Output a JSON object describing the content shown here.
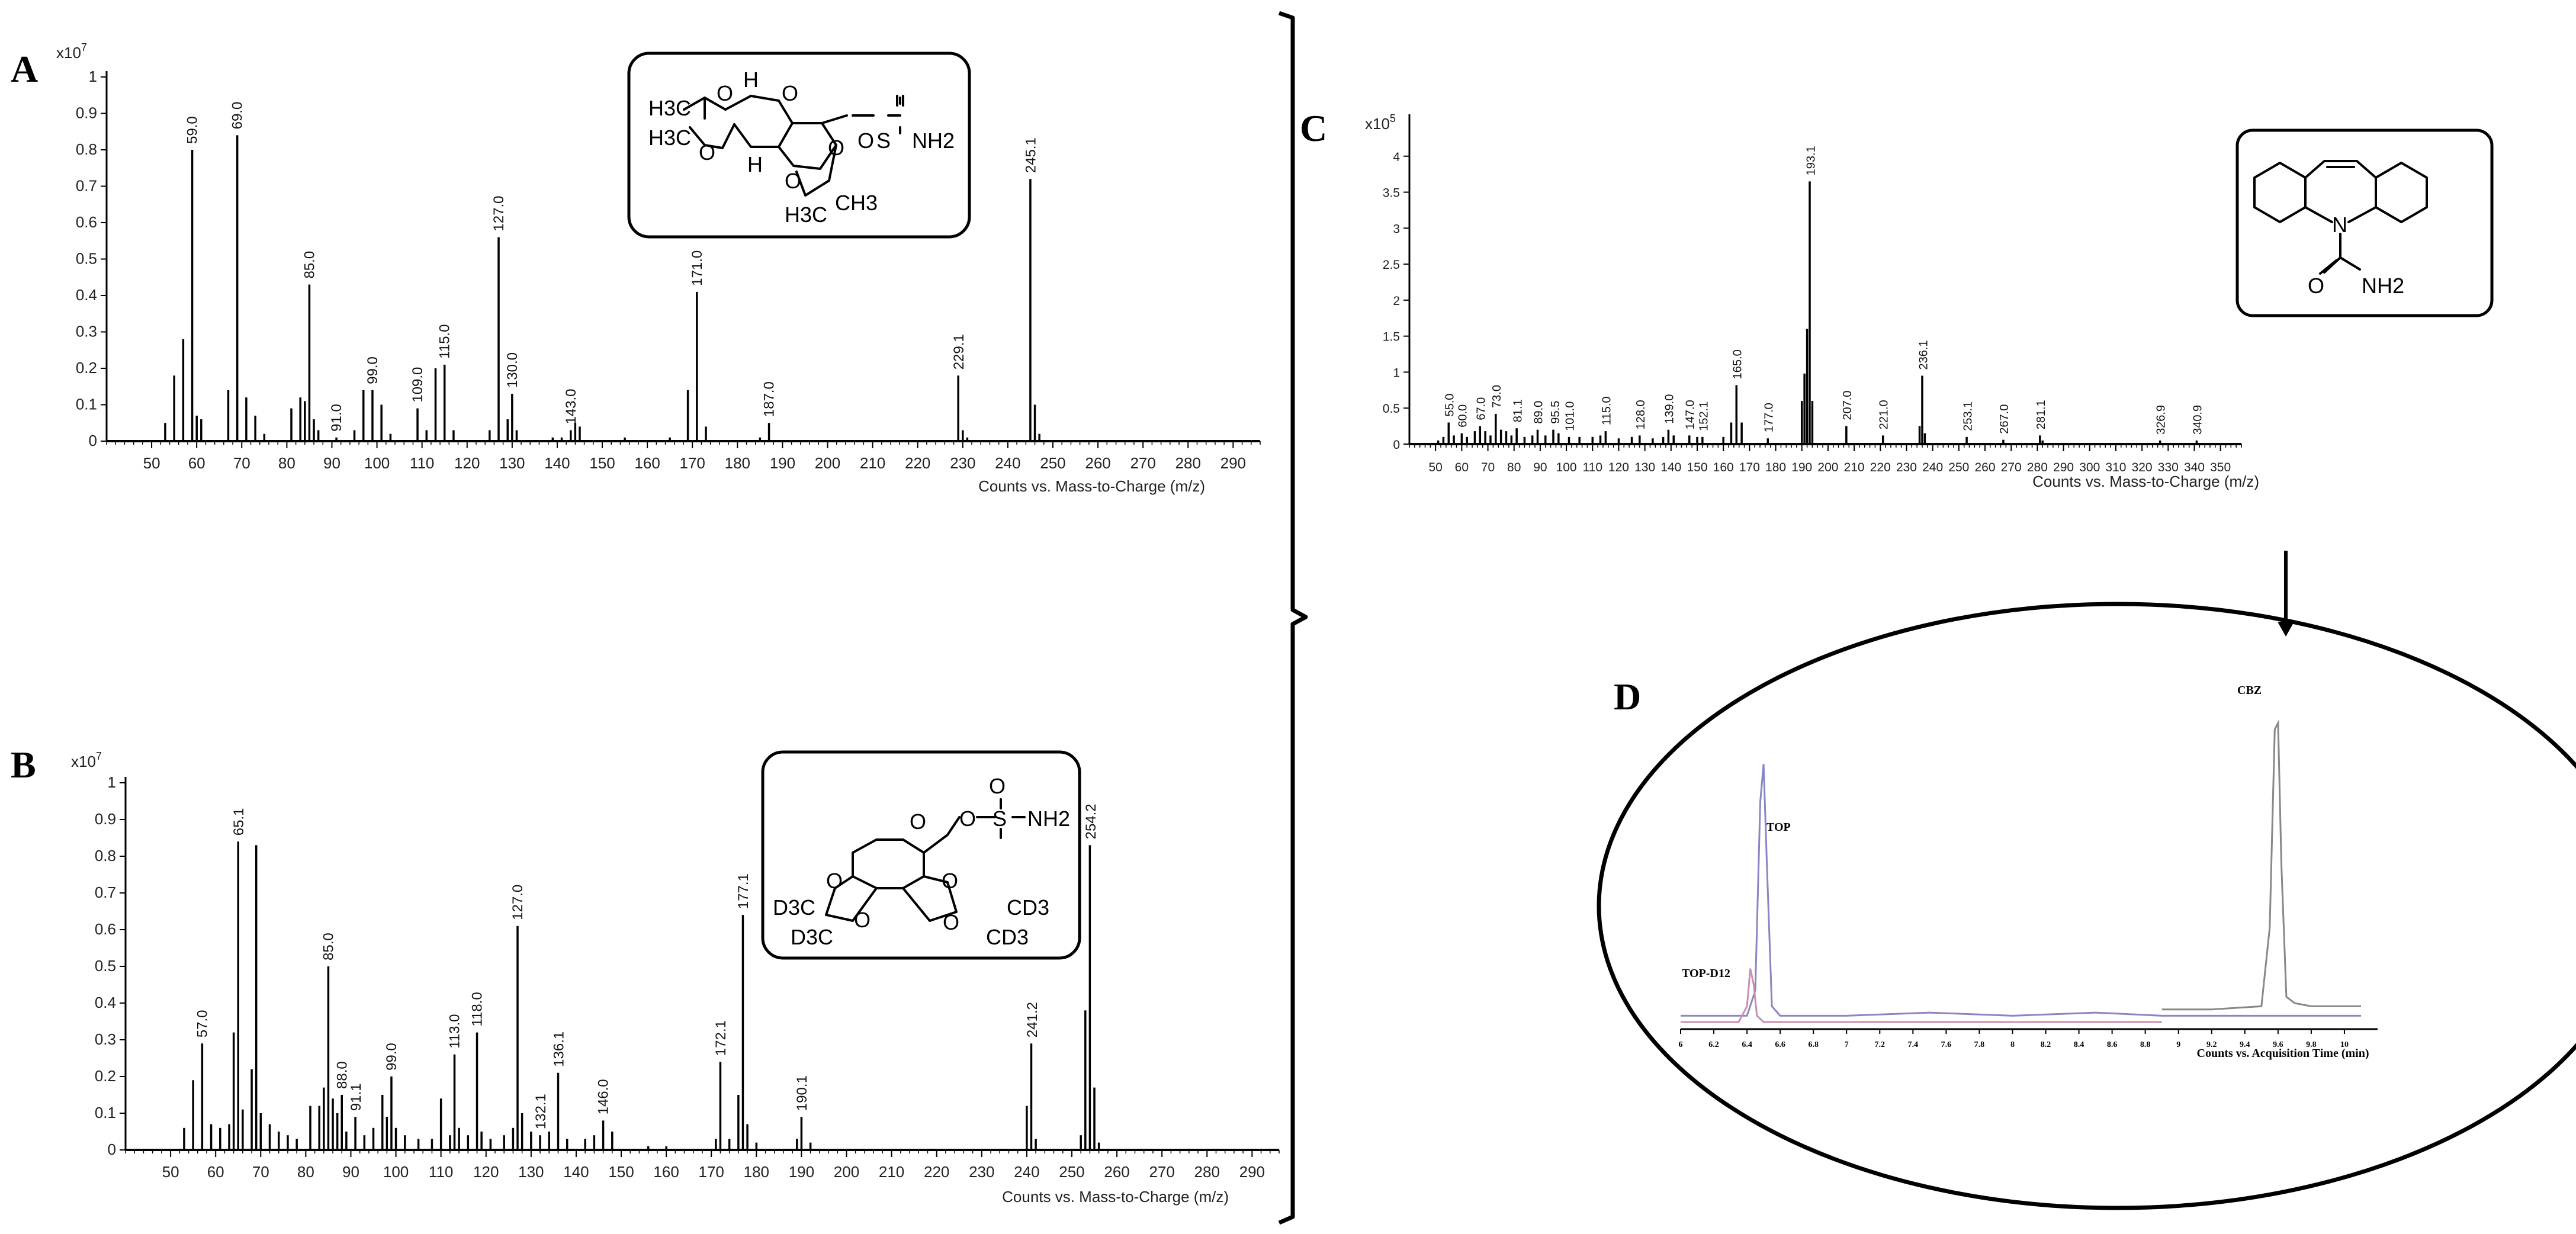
{
  "panels": {
    "A": {
      "letter": "A",
      "multiplier": "x10",
      "exponent": "7",
      "xlabel": "Counts vs. Mass-to-Charge (m/z)"
    },
    "B": {
      "letter": "B",
      "multiplier": "x10",
      "exponent": "7",
      "xlabel": "Counts vs. Mass-to-Charge (m/z)"
    },
    "C": {
      "letter": "C",
      "multiplier": "x10",
      "exponent": "5",
      "xlabel": "Counts vs. Mass-to-Charge (m/z)"
    },
    "D": {
      "letter": "D",
      "xlabel": "Counts vs. Acquisition Time (min)",
      "peak_labels": [
        "TOP-D12",
        "TOP",
        "CBZ"
      ]
    }
  },
  "structures": {
    "A": {
      "atoms": [
        "H",
        "H",
        "O",
        "O",
        "O",
        "O",
        "O",
        "O",
        "S",
        "NH2",
        "H3C",
        "H3C",
        "H3C",
        "CH3"
      ]
    },
    "B": {
      "atoms": [
        "O",
        "O",
        "O",
        "O",
        "O",
        "O",
        "O",
        "S",
        "NH2",
        "D3C",
        "D3C",
        "CD3",
        "CD3"
      ]
    },
    "C": {
      "atoms": [
        "N",
        "O",
        "NH2"
      ]
    }
  },
  "chart_data": [
    {
      "id": "A",
      "type": "bar",
      "xlabel": "Counts vs. Mass-to-Charge (m/z)",
      "ylabel": "",
      "xlim": [
        40,
        296
      ],
      "ylim": [
        0,
        1
      ],
      "xticks": [
        50,
        60,
        70,
        80,
        90,
        100,
        110,
        120,
        130,
        140,
        150,
        160,
        170,
        180,
        190,
        200,
        210,
        220,
        230,
        240,
        250,
        260,
        270,
        280,
        290
      ],
      "yticks": [
        0,
        0.1,
        0.2,
        0.3,
        0.4,
        0.5,
        0.6,
        0.7,
        0.8,
        0.9,
        1
      ],
      "labels": [
        "59.0",
        "69.0",
        "85.0",
        "91.0",
        "99.0",
        "109.0",
        "115.0",
        "127.0",
        "130.0",
        "143.0",
        "171.0",
        "187.0",
        "229.1",
        "245.1"
      ],
      "x": [
        53,
        55,
        57,
        59,
        60,
        61,
        67,
        69,
        71,
        73,
        75,
        81,
        83,
        84,
        85,
        86,
        87,
        91,
        95,
        97,
        99,
        101,
        103,
        109,
        111,
        113,
        115,
        117,
        125,
        127,
        129,
        130,
        131,
        139,
        141,
        143,
        144,
        145,
        155,
        165,
        169,
        171,
        173,
        185,
        187,
        229,
        230,
        231,
        245,
        246,
        247
      ],
      "y": [
        0.05,
        0.18,
        0.28,
        0.8,
        0.07,
        0.06,
        0.14,
        0.84,
        0.12,
        0.07,
        0.02,
        0.09,
        0.12,
        0.11,
        0.43,
        0.06,
        0.03,
        0.01,
        0.03,
        0.14,
        0.14,
        0.1,
        0.02,
        0.09,
        0.03,
        0.2,
        0.21,
        0.03,
        0.03,
        0.56,
        0.06,
        0.13,
        0.03,
        0.01,
        0.01,
        0.03,
        0.05,
        0.04,
        0.01,
        0.01,
        0.14,
        0.41,
        0.04,
        0.01,
        0.05,
        0.18,
        0.03,
        0.01,
        0.72,
        0.1,
        0.02
      ]
    },
    {
      "id": "B",
      "type": "bar",
      "xlabel": "Counts vs. Mass-to-Charge (m/z)",
      "ylabel": "",
      "xlim": [
        40,
        296
      ],
      "ylim": [
        0,
        1
      ],
      "xticks": [
        50,
        60,
        70,
        80,
        90,
        100,
        110,
        120,
        130,
        140,
        150,
        160,
        170,
        180,
        190,
        200,
        210,
        220,
        230,
        240,
        250,
        260,
        270,
        280,
        290
      ],
      "yticks": [
        0,
        0.1,
        0.2,
        0.3,
        0.4,
        0.5,
        0.6,
        0.7,
        0.8,
        0.9,
        1
      ],
      "labels": [
        "57.0",
        "65.1",
        "85.0",
        "88.0",
        "91.1",
        "99.0",
        "113.0",
        "118.0",
        "127.0",
        "132.1",
        "136.1",
        "146.0",
        "172.1",
        "177.1",
        "190.1",
        "241.2",
        "254.2"
      ],
      "x": [
        53,
        55,
        57,
        59,
        61,
        63,
        64,
        65,
        66,
        68,
        69,
        70,
        72,
        74,
        76,
        78,
        81,
        83,
        84,
        85,
        86,
        87,
        88,
        89,
        91,
        93,
        95,
        97,
        98,
        99,
        100,
        102,
        105,
        108,
        110,
        112,
        113,
        114,
        116,
        118,
        119,
        121,
        124,
        126,
        127,
        128,
        130,
        132,
        134,
        136,
        138,
        142,
        144,
        146,
        148,
        156,
        160,
        171,
        172,
        174,
        176,
        177,
        178,
        180,
        189,
        190,
        192,
        240,
        241,
        242,
        252,
        253,
        254,
        255,
        256
      ],
      "y": [
        0.06,
        0.19,
        0.29,
        0.07,
        0.06,
        0.07,
        0.32,
        0.84,
        0.11,
        0.22,
        0.83,
        0.1,
        0.07,
        0.05,
        0.04,
        0.03,
        0.12,
        0.12,
        0.17,
        0.5,
        0.14,
        0.1,
        0.15,
        0.05,
        0.09,
        0.04,
        0.06,
        0.15,
        0.09,
        0.2,
        0.06,
        0.04,
        0.03,
        0.03,
        0.14,
        0.04,
        0.26,
        0.06,
        0.04,
        0.32,
        0.05,
        0.03,
        0.04,
        0.06,
        0.61,
        0.1,
        0.05,
        0.04,
        0.05,
        0.21,
        0.03,
        0.03,
        0.04,
        0.08,
        0.05,
        0.01,
        0.01,
        0.03,
        0.24,
        0.03,
        0.15,
        0.64,
        0.07,
        0.02,
        0.03,
        0.09,
        0.02,
        0.12,
        0.29,
        0.03,
        0.04,
        0.38,
        0.83,
        0.17,
        0.02
      ]
    },
    {
      "id": "C",
      "type": "bar",
      "xlabel": "Counts vs. Mass-to-Charge (m/z)",
      "ylabel": "",
      "xlim": [
        40,
        358
      ],
      "ylim": [
        0,
        4.5
      ],
      "xticks": [
        50,
        60,
        70,
        80,
        90,
        100,
        110,
        120,
        130,
        140,
        150,
        160,
        170,
        180,
        190,
        200,
        210,
        220,
        230,
        240,
        250,
        260,
        270,
        280,
        290,
        300,
        310,
        320,
        330,
        340,
        350
      ],
      "yticks": [
        0,
        0.5,
        1,
        1.5,
        2,
        2.5,
        3,
        3.5,
        4
      ],
      "labels": [
        "55.0",
        "60.0",
        "67.0",
        "73.0",
        "81.1",
        "89.0",
        "95.5",
        "101.0",
        "115.0",
        "128.0",
        "139.0",
        "147.0",
        "152.1",
        "165.0",
        "177.0",
        "193.1",
        "207.0",
        "221.0",
        "236.1",
        "253.1",
        "267.0",
        "281.1",
        "326.9",
        "340.9"
      ],
      "x": [
        51,
        53,
        55,
        57,
        60,
        62,
        65,
        67,
        69,
        71,
        73,
        75,
        77,
        79,
        81,
        84,
        87,
        89,
        92,
        95,
        97,
        101,
        105,
        110,
        113,
        115,
        120,
        125,
        128,
        133,
        137,
        139,
        141,
        147,
        150,
        152,
        160,
        163,
        165,
        167,
        177,
        190,
        191,
        192,
        193,
        194,
        207,
        221,
        235,
        236,
        237,
        253,
        267,
        281,
        282,
        326.9,
        340.9
      ],
      "y": [
        0.05,
        0.1,
        0.3,
        0.12,
        0.15,
        0.1,
        0.18,
        0.25,
        0.18,
        0.12,
        0.42,
        0.2,
        0.18,
        0.12,
        0.22,
        0.1,
        0.12,
        0.2,
        0.12,
        0.2,
        0.15,
        0.1,
        0.1,
        0.1,
        0.12,
        0.18,
        0.08,
        0.1,
        0.12,
        0.08,
        0.1,
        0.2,
        0.12,
        0.12,
        0.1,
        0.1,
        0.1,
        0.3,
        0.82,
        0.3,
        0.08,
        0.6,
        0.98,
        1.6,
        3.65,
        0.6,
        0.25,
        0.12,
        0.25,
        0.95,
        0.15,
        0.1,
        0.06,
        0.12,
        0.05,
        0.05,
        0.05
      ]
    },
    {
      "id": "D",
      "type": "line",
      "xlabel": "Counts vs. Acquisition Time (min)",
      "ylabel": "",
      "xlim": [
        6,
        10.2
      ],
      "ylim": [
        0,
        1.05
      ],
      "xticks": [
        6,
        6.2,
        6.4,
        6.6,
        6.8,
        7,
        7.2,
        7.4,
        7.6,
        7.8,
        8,
        8.2,
        8.4,
        8.6,
        8.8,
        9,
        9.2,
        9.4,
        9.6,
        9.8,
        10
      ],
      "series": [
        {
          "name": "TOP",
          "color": "#8a86c4",
          "x": [
            6.0,
            6.4,
            6.45,
            6.48,
            6.5,
            6.52,
            6.55,
            6.6,
            7.0,
            7.5,
            8.0,
            8.5,
            8.9,
            9.5,
            10.1
          ],
          "y": [
            0.02,
            0.02,
            0.1,
            0.7,
            0.82,
            0.5,
            0.05,
            0.02,
            0.02,
            0.03,
            0.02,
            0.03,
            0.02,
            0.02,
            0.02
          ]
        },
        {
          "name": "TOP-D12",
          "color": "#c98fb0",
          "x": [
            6.0,
            6.35,
            6.4,
            6.42,
            6.44,
            6.46,
            6.5,
            7.0,
            7.5,
            8.0,
            8.5,
            8.9
          ],
          "y": [
            0.0,
            0.0,
            0.05,
            0.17,
            0.12,
            0.02,
            0.0,
            0.0,
            0.0,
            0.0,
            0.0,
            0.0
          ]
        },
        {
          "name": "CBZ",
          "color": "#888888",
          "x": [
            8.9,
            9.2,
            9.5,
            9.55,
            9.58,
            9.6,
            9.62,
            9.65,
            9.7,
            9.8,
            9.9,
            10.1
          ],
          "y": [
            0.04,
            0.04,
            0.05,
            0.3,
            0.93,
            0.95,
            0.5,
            0.08,
            0.06,
            0.05,
            0.05,
            0.05
          ]
        }
      ]
    }
  ]
}
